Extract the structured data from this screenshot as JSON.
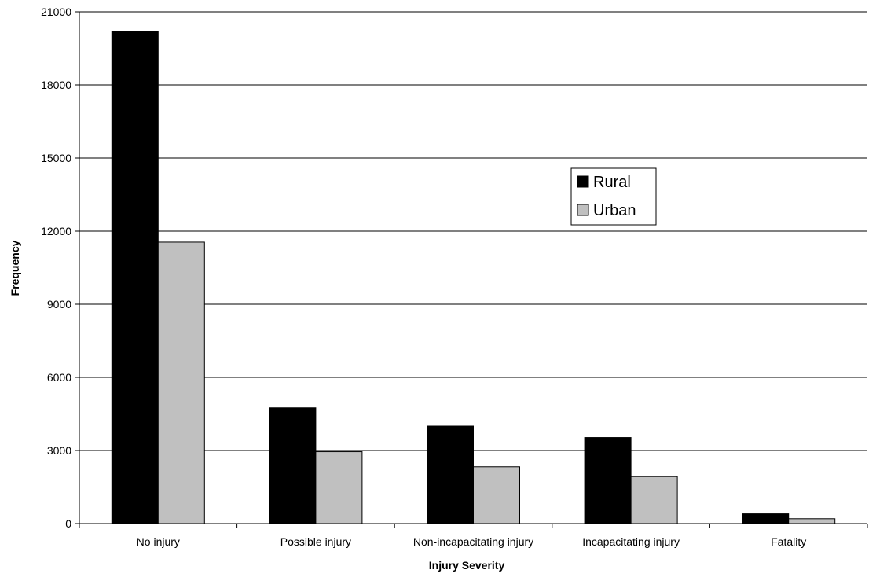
{
  "chart_data": {
    "type": "bar",
    "title": "",
    "xlabel": "Injury Severity",
    "ylabel": "Frequency",
    "categories": [
      "No injury",
      "Possible injury",
      "Non-incapacitating injury",
      "Incapacitating injury",
      "Fatality"
    ],
    "series": [
      {
        "name": "Rural",
        "color": "#000000",
        "values": [
          20200,
          4750,
          4000,
          3530,
          400
        ]
      },
      {
        "name": "Urban",
        "color": "#c0c0c0",
        "values": [
          11550,
          2950,
          2330,
          1930,
          200
        ]
      }
    ],
    "ylim": [
      0,
      21000
    ],
    "yticks": [
      "0",
      "3000",
      "6000",
      "9000",
      "12000",
      "15000",
      "18000",
      "21000"
    ],
    "grid": true,
    "legend": "upper-right-inside"
  }
}
